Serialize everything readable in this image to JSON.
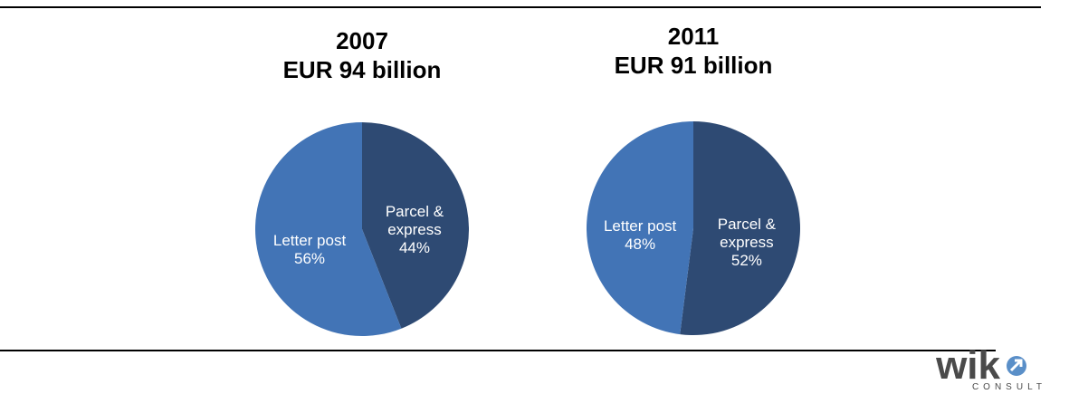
{
  "chart_data": [
    {
      "type": "pie",
      "title": "2007",
      "subtitle": "EUR 94 billion",
      "categories": [
        "Parcel & express",
        "Letter post"
      ],
      "values": [
        44,
        56
      ],
      "value_labels": [
        "44%",
        "56%"
      ],
      "colors": [
        "#2e4a73",
        "#4274b6"
      ]
    },
    {
      "type": "pie",
      "title": "2011",
      "subtitle": "EUR 91 billion",
      "categories": [
        "Parcel & express",
        "Letter post"
      ],
      "values": [
        52,
        48
      ],
      "value_labels": [
        "52%",
        "48%"
      ],
      "colors": [
        "#2e4a73",
        "#4274b6"
      ]
    }
  ],
  "logo": {
    "name": "wik",
    "tagline": "CONSULT"
  }
}
